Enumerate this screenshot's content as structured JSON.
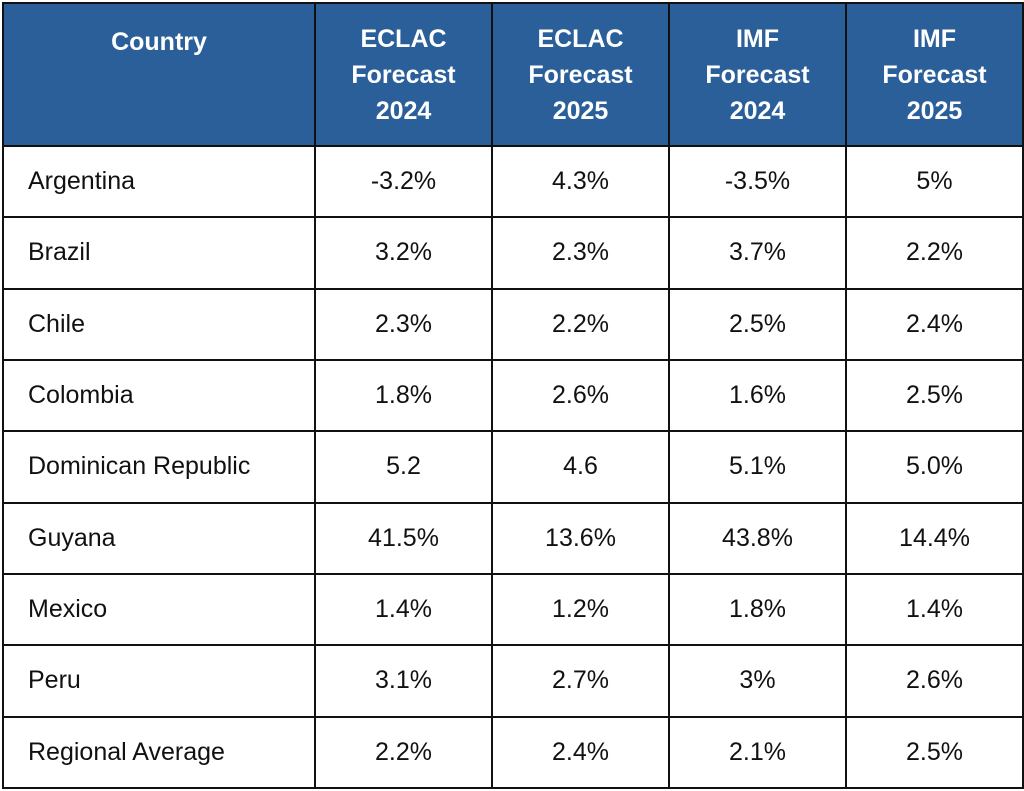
{
  "table": {
    "headers": [
      [
        "Country"
      ],
      [
        "ECLAC",
        "Forecast",
        "2024"
      ],
      [
        "ECLAC",
        "Forecast",
        "2025"
      ],
      [
        "IMF",
        "Forecast",
        "2024"
      ],
      [
        "IMF",
        "Forecast",
        "2025"
      ]
    ],
    "rows": [
      [
        "Argentina",
        "-3.2%",
        "4.3%",
        "-3.5%",
        "5%"
      ],
      [
        "Brazil",
        "3.2%",
        "2.3%",
        "3.7%",
        "2.2%"
      ],
      [
        "Chile",
        "2.3%",
        "2.2%",
        "2.5%",
        "2.4%"
      ],
      [
        "Colombia",
        "1.8%",
        "2.6%",
        "1.6%",
        "2.5%"
      ],
      [
        "Dominican Republic",
        "5.2",
        "4.6",
        "5.1%",
        "5.0%"
      ],
      [
        "Guyana",
        "41.5%",
        "13.6%",
        "43.8%",
        "14.4%"
      ],
      [
        "Mexico",
        "1.4%",
        "1.2%",
        "1.8%",
        "1.4%"
      ],
      [
        "Peru",
        "3.1%",
        "2.7%",
        "3%",
        "2.6%"
      ],
      [
        "Regional Average",
        "2.2%",
        "2.4%",
        "2.1%",
        "2.5%"
      ]
    ]
  },
  "colors": {
    "header_bg": "#2a5f99",
    "header_text": "#ffffff",
    "border": "#111111",
    "body_text": "#111111"
  }
}
